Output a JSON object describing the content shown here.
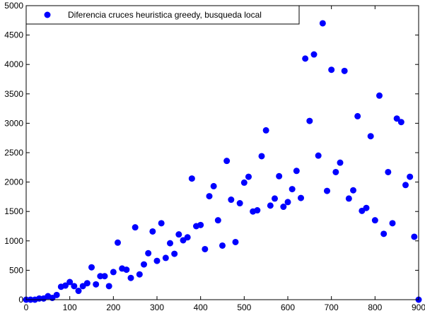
{
  "chart_data": {
    "type": "scatter",
    "title": "",
    "xlabel": "",
    "ylabel": "",
    "xlim": [
      0,
      900
    ],
    "ylim": [
      0,
      5000
    ],
    "xticks": [
      0,
      100,
      200,
      300,
      400,
      500,
      600,
      700,
      800,
      900
    ],
    "yticks": [
      0,
      500,
      1000,
      1500,
      2000,
      2500,
      3000,
      3500,
      4000,
      4500,
      5000
    ],
    "grid": false,
    "legend": {
      "position": "top-left"
    },
    "marker_color": "#0000ff",
    "series": [
      {
        "name": "Diferencia cruces heuristica greedy, busqueda local",
        "x": [
          0,
          10,
          20,
          30,
          40,
          50,
          60,
          70,
          80,
          90,
          100,
          110,
          120,
          130,
          140,
          150,
          160,
          170,
          180,
          190,
          200,
          210,
          220,
          230,
          240,
          250,
          260,
          270,
          280,
          290,
          300,
          310,
          320,
          330,
          340,
          350,
          360,
          370,
          380,
          390,
          400,
          410,
          420,
          430,
          440,
          450,
          460,
          470,
          480,
          490,
          500,
          510,
          520,
          530,
          540,
          550,
          560,
          570,
          580,
          590,
          600,
          610,
          620,
          630,
          640,
          650,
          660,
          670,
          680,
          690,
          700,
          710,
          720,
          730,
          740,
          750,
          760,
          770,
          780,
          790,
          800,
          810,
          820,
          830,
          840,
          850,
          860,
          870,
          880,
          890,
          900
        ],
        "y": [
          0,
          0,
          0,
          20,
          20,
          60,
          30,
          80,
          220,
          240,
          300,
          230,
          150,
          230,
          280,
          550,
          260,
          400,
          400,
          230,
          470,
          970,
          530,
          510,
          370,
          1230,
          430,
          600,
          790,
          1160,
          660,
          1300,
          710,
          960,
          780,
          1110,
          1010,
          1060,
          2060,
          1250,
          1270,
          860,
          1760,
          1930,
          1350,
          920,
          2360,
          1700,
          980,
          1640,
          1990,
          2090,
          1500,
          1520,
          2440,
          2880,
          1600,
          1720,
          2100,
          1580,
          1660,
          1880,
          2190,
          1730,
          4100,
          3040,
          4170,
          2450,
          4700,
          1850,
          3910,
          2170,
          2330,
          3890,
          1720,
          1860,
          3120,
          1510,
          1560,
          2780,
          1350,
          3470,
          1120,
          2170,
          1300,
          3080,
          3020,
          1950,
          2090,
          1070,
          0
        ]
      }
    ]
  }
}
